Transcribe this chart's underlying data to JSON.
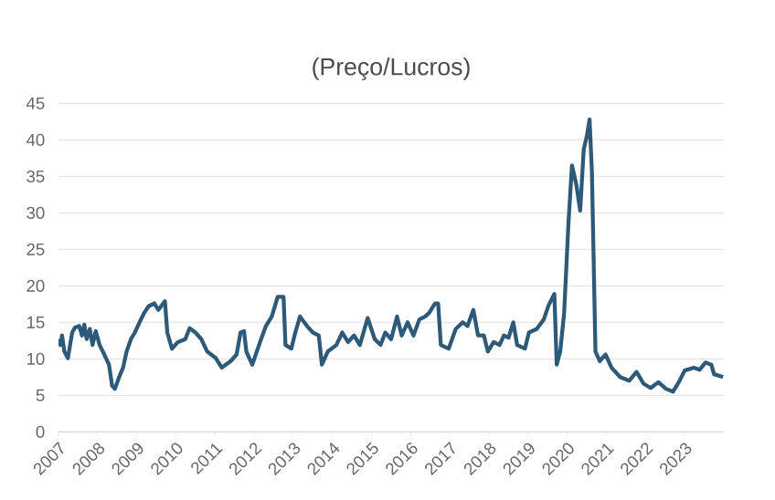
{
  "chart_data": {
    "type": "line",
    "title": "(Preço/Lucros)",
    "x": [
      2007.0,
      2007.05,
      2007.09,
      2007.15,
      2007.24,
      2007.35,
      2007.42,
      2007.53,
      2007.6,
      2007.66,
      2007.72,
      2007.8,
      2007.87,
      2007.95,
      2008.05,
      2008.17,
      2008.29,
      2008.37,
      2008.44,
      2008.55,
      2008.65,
      2008.74,
      2008.85,
      2008.95,
      2009.07,
      2009.19,
      2009.3,
      2009.45,
      2009.55,
      2009.72,
      2009.78,
      2009.9,
      2010.05,
      2010.24,
      2010.35,
      2010.5,
      2010.65,
      2010.8,
      2011.02,
      2011.17,
      2011.4,
      2011.55,
      2011.65,
      2011.74,
      2011.8,
      2011.95,
      2012.15,
      2012.3,
      2012.45,
      2012.6,
      2012.75,
      2012.8,
      2012.95,
      2013.05,
      2013.17,
      2013.35,
      2013.5,
      2013.65,
      2013.73,
      2013.88,
      2014.1,
      2014.25,
      2014.4,
      2014.55,
      2014.7,
      2014.9,
      2015.08,
      2015.23,
      2015.35,
      2015.5,
      2015.65,
      2015.77,
      2015.92,
      2016.07,
      2016.22,
      2016.37,
      2016.47,
      2016.62,
      2016.7,
      2016.77,
      2016.97,
      2017.15,
      2017.33,
      2017.45,
      2017.6,
      2017.72,
      2017.87,
      2017.97,
      2018.12,
      2018.27,
      2018.38,
      2018.5,
      2018.62,
      2018.72,
      2018.92,
      2019.02,
      2019.22,
      2019.4,
      2019.52,
      2019.67,
      2019.73,
      2019.82,
      2019.92,
      2020.03,
      2020.12,
      2020.23,
      2020.33,
      2020.42,
      2020.5,
      2020.57,
      2020.63,
      2020.72,
      2020.83,
      2020.98,
      2021.13,
      2021.35,
      2021.58,
      2021.77,
      2021.95,
      2022.13,
      2022.33,
      2022.52,
      2022.7,
      2022.85,
      2023.0,
      2023.23,
      2023.38,
      2023.53,
      2023.68,
      2023.75,
      2023.98
    ],
    "series": [
      {
        "color": "#2e5a7a",
        "values": [
          12.7,
          11.9,
          13.2,
          11,
          10.1,
          13.6,
          14.3,
          14.5,
          13.2,
          14.7,
          12.7,
          14.1,
          11.9,
          13.8,
          11.9,
          10.6,
          9.2,
          6.3,
          5.9,
          7.5,
          8.8,
          11,
          12.7,
          13.6,
          15,
          16.3,
          17.2,
          17.6,
          16.7,
          17.9,
          13.6,
          11.4,
          12.3,
          12.7,
          14.2,
          13.6,
          12.7,
          11,
          10.1,
          8.8,
          9.7,
          10.6,
          13.6,
          13.8,
          11,
          9.2,
          12.3,
          14.5,
          15.8,
          18.5,
          18.5,
          11.9,
          11.4,
          13.6,
          15.8,
          14.5,
          13.6,
          13.2,
          9.2,
          11,
          11.9,
          13.6,
          12.3,
          13.2,
          11.9,
          15.6,
          12.7,
          11.9,
          13.6,
          12.7,
          15.8,
          13.2,
          15,
          13.2,
          15.4,
          15.8,
          16.3,
          17.6,
          17.6,
          11.9,
          11.4,
          14.1,
          15,
          14.5,
          16.7,
          13.2,
          13.2,
          11,
          12.3,
          11.9,
          13.2,
          12.9,
          15,
          11.9,
          11.4,
          13.6,
          14.1,
          15.4,
          17.3,
          18.9,
          9.2,
          11,
          16.3,
          28.6,
          36.5,
          33.9,
          30.3,
          38.7,
          40.5,
          42.8,
          35.6,
          11,
          9.7,
          10.6,
          8.8,
          7.5,
          7.0,
          8.2,
          6.6,
          6.0,
          6.8,
          5.9,
          5.5,
          6.8,
          8.4,
          8.8,
          8.5,
          9.5,
          9.2,
          7.9,
          7.5
        ]
      }
    ],
    "xlim": [
      2007,
      2024
    ],
    "xticks": [
      2007,
      2008,
      2009,
      2010,
      2011,
      2012,
      2013,
      2014,
      2015,
      2016,
      2017,
      2018,
      2019,
      2020,
      2021,
      2022,
      2023
    ],
    "ylim": [
      0,
      45
    ],
    "yticks": [
      0,
      5,
      10,
      15,
      20,
      25,
      30,
      35,
      40,
      45
    ],
    "grid": "y"
  }
}
